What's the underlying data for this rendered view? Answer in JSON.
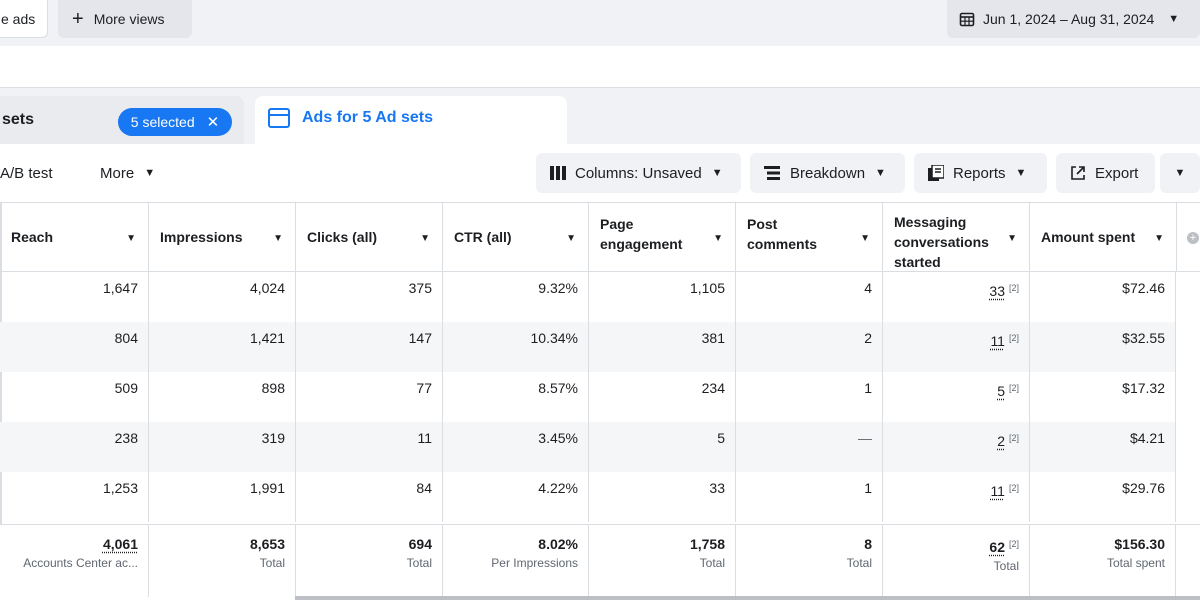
{
  "topbar": {
    "ads_tab_label": "e ads",
    "more_views_label": "More views",
    "date_range": "Jun 1, 2024 – Aug 31, 2024"
  },
  "tabs": {
    "adsets_label": "sets",
    "selected_label": "5 selected",
    "ads_label": "Ads for 5 Ad sets"
  },
  "toolbar": {
    "ab_test": "A/B test",
    "more": "More",
    "columns": "Columns: Unsaved",
    "breakdown": "Breakdown",
    "reports": "Reports",
    "export": "Export"
  },
  "table": {
    "columns": [
      {
        "label": "Reach"
      },
      {
        "label": "Impressions"
      },
      {
        "label": "Clicks (all)"
      },
      {
        "label": "CTR (all)"
      },
      {
        "label": "Page engagement"
      },
      {
        "label": "Post comments"
      },
      {
        "label": "Messaging conversations started"
      },
      {
        "label": "Amount spent"
      }
    ],
    "rows": [
      {
        "reach": "1,647",
        "impressions": "4,024",
        "clicks": "375",
        "ctr": "9.32%",
        "engagement": "1,105",
        "comments": "4",
        "messaging": "33",
        "messaging_note": "[2]",
        "spent": "$72.46"
      },
      {
        "reach": "804",
        "impressions": "1,421",
        "clicks": "147",
        "ctr": "10.34%",
        "engagement": "381",
        "comments": "2",
        "messaging": "11",
        "messaging_note": "[2]",
        "spent": "$32.55"
      },
      {
        "reach": "509",
        "impressions": "898",
        "clicks": "77",
        "ctr": "8.57%",
        "engagement": "234",
        "comments": "1",
        "messaging": "5",
        "messaging_note": "[2]",
        "spent": "$17.32"
      },
      {
        "reach": "238",
        "impressions": "319",
        "clicks": "11",
        "ctr": "3.45%",
        "engagement": "5",
        "comments": "—",
        "messaging": "2",
        "messaging_note": "[2]",
        "spent": "$4.21"
      },
      {
        "reach": "1,253",
        "impressions": "1,991",
        "clicks": "84",
        "ctr": "4.22%",
        "engagement": "33",
        "comments": "1",
        "messaging": "11",
        "messaging_note": "[2]",
        "spent": "$29.76"
      }
    ],
    "totals": {
      "reach": "4,061",
      "reach_sub": "Accounts Center ac...",
      "impressions": "8,653",
      "impressions_sub": "Total",
      "clicks": "694",
      "clicks_sub": "Total",
      "ctr": "8.02%",
      "ctr_sub": "Per Impressions",
      "engagement": "1,758",
      "engagement_sub": "Total",
      "comments": "8",
      "comments_sub": "Total",
      "messaging": "62",
      "messaging_note": "[2]",
      "messaging_sub": "Total",
      "spent": "$156.30",
      "spent_sub": "Total spent"
    }
  }
}
